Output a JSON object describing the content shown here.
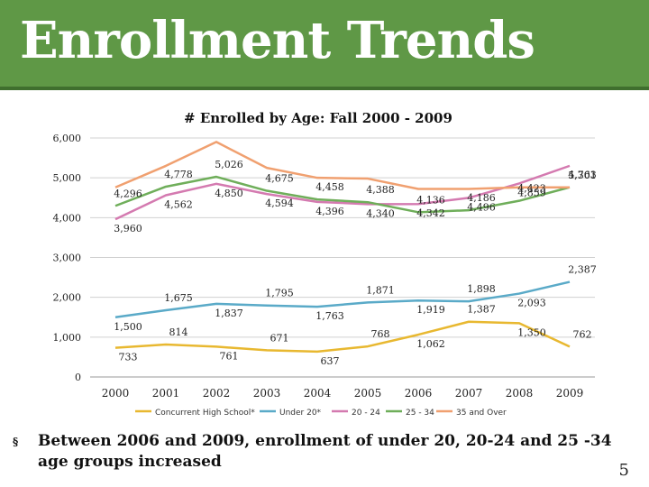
{
  "slide": {
    "title": "Enrollment Trends",
    "bullet_mark": "§",
    "bullet": "Between 2006 and 2009, enrollment of under 20, 20-24 and 25 -34 age groups increased",
    "page_number": "5"
  },
  "chart_data": {
    "type": "line",
    "title": "# Enrolled by Age: Fall 2000 - 2009",
    "xlabel": "",
    "ylabel": "",
    "ylim": [
      0,
      6000
    ],
    "yticks": [
      0,
      1000,
      2000,
      3000,
      4000,
      5000,
      6000
    ],
    "ytick_labels": [
      "0",
      "1,000",
      "2,000",
      "3,000",
      "4,000",
      "5,000",
      "6,000"
    ],
    "categories": [
      "2000",
      "2001",
      "2002",
      "2003",
      "2004",
      "2005",
      "2006",
      "2007",
      "2008",
      "2009"
    ],
    "grid": true,
    "legend_position": "bottom",
    "series": [
      {
        "name": "Concurrent High School*",
        "color": "#e8b830",
        "values": [
          733,
          814,
          761,
          671,
          637,
          768,
          1062,
          1387,
          1350,
          762
        ],
        "labels": [
          "733",
          "814",
          "761",
          "671",
          "637",
          "768",
          "1,062",
          "1,387",
          "1,350",
          "762"
        ],
        "label_points": [
          0,
          1,
          2,
          3,
          4,
          5,
          6,
          7,
          8,
          9
        ]
      },
      {
        "name": "Under 20*",
        "color": "#5aaac8",
        "values": [
          1500,
          1675,
          1837,
          1795,
          1763,
          1871,
          1919,
          1898,
          2093,
          2387
        ],
        "labels": [
          "1,500",
          "1,675",
          "1,837",
          "1,795",
          "1,763",
          "1,871",
          "1,919",
          "1,898",
          "2,093",
          "2,387"
        ],
        "label_points": [
          0,
          1,
          2,
          3,
          4,
          5,
          6,
          7,
          8,
          9
        ]
      },
      {
        "name": "20 - 24",
        "color": "#d47ab0",
        "values": [
          3960,
          4562,
          4850,
          4594,
          4396,
          4340,
          4342,
          4496,
          4859,
          5301
        ],
        "labels": [
          "3,960",
          "4,562",
          "4,850",
          "4,594",
          "4,396",
          "4,340",
          "4,342",
          "4,496",
          "4,859",
          "5,301"
        ],
        "label_points": [
          0,
          1,
          2,
          3,
          4,
          5,
          6,
          7,
          8,
          9
        ]
      },
      {
        "name": "25 - 34",
        "color": "#6fae5a",
        "values": [
          4296,
          4778,
          5026,
          4675,
          4458,
          4388,
          4136,
          4186,
          4423,
          4763
        ],
        "labels": [
          "4,296",
          "4,778",
          "5,026",
          "4,675",
          "4,458",
          "4,388",
          "4,136",
          "4,186",
          "4,423",
          "4,763"
        ],
        "label_points": [
          0,
          1,
          2,
          3,
          4,
          5,
          6,
          7,
          8,
          9
        ]
      },
      {
        "name": "35 and Over",
        "color": "#f0a070",
        "values": [
          4760,
          5300,
          5900,
          5250,
          5000,
          4980,
          4720,
          4720,
          4760,
          4760
        ],
        "labels": [],
        "label_points": []
      }
    ]
  }
}
